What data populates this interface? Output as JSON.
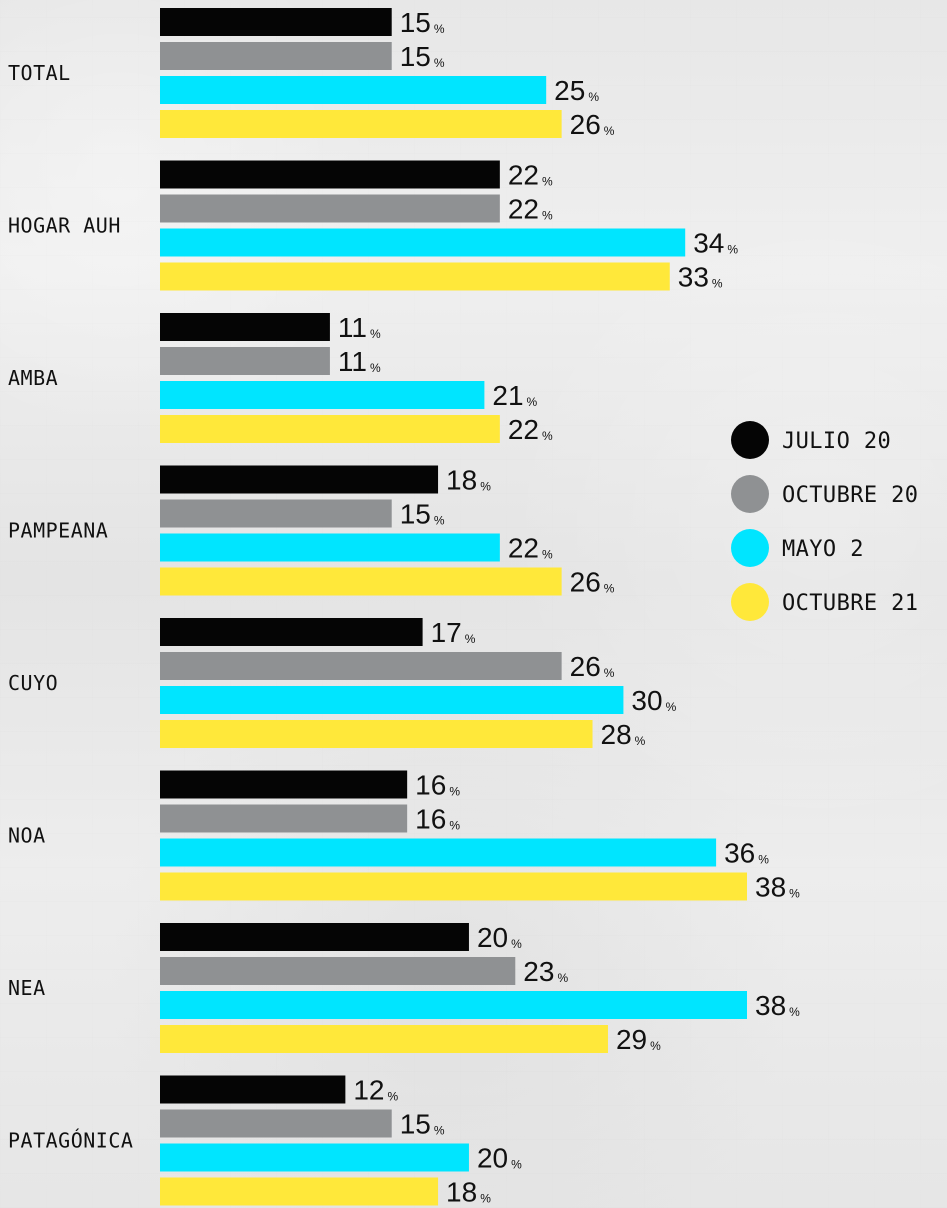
{
  "chart_data": {
    "type": "bar",
    "orientation": "horizontal",
    "categories": [
      "TOTAL",
      "HOGAR AUH",
      "AMBA",
      "PAMPEANA",
      "CUYO",
      "NOA",
      "NEA",
      "PATAGÓNICA"
    ],
    "series": [
      {
        "name": "JULIO 20",
        "color": "#050505",
        "values": [
          15,
          22,
          11,
          18,
          17,
          16,
          20,
          12
        ]
      },
      {
        "name": "OCTUBRE 20",
        "color": "#8f9193",
        "values": [
          15,
          22,
          11,
          15,
          26,
          16,
          23,
          15
        ]
      },
      {
        "name": "MAYO 2",
        "color": "#00e5ff",
        "values": [
          25,
          34,
          21,
          22,
          30,
          36,
          38,
          20
        ]
      },
      {
        "name": "OCTUBRE 21",
        "color": "#ffe83a",
        "values": [
          26,
          33,
          22,
          26,
          28,
          38,
          29,
          18
        ]
      }
    ],
    "value_suffix": "%",
    "xlim": [
      0,
      38
    ],
    "grid": false,
    "legend_position": "right"
  }
}
